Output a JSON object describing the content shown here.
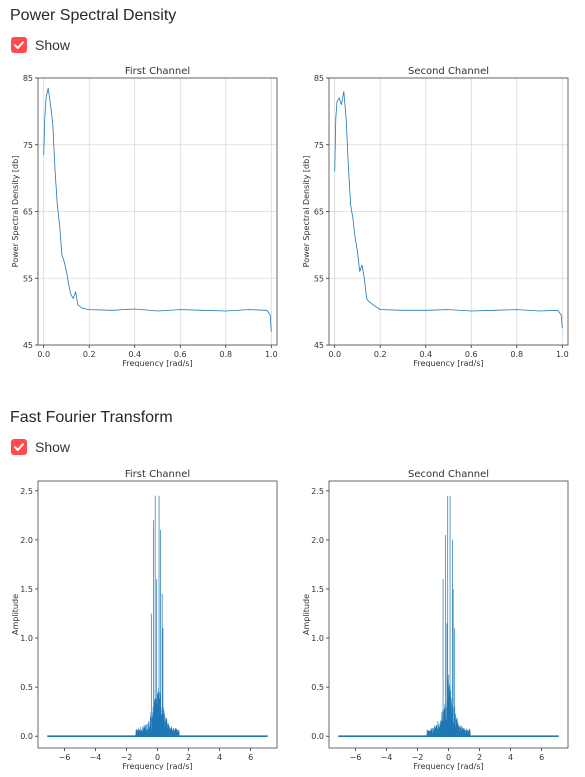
{
  "sections": [
    {
      "title": "Power Spectral Density",
      "checkbox_label": "Show",
      "checked": true
    },
    {
      "title": "Fast Fourier Transform",
      "checkbox_label": "Show",
      "checked": true
    }
  ],
  "colors": {
    "accent": "#ff4b4b",
    "line": "#1f77b4",
    "grid": "#d9d9d9"
  },
  "chart_data": [
    {
      "type": "line",
      "title": "First Channel",
      "xlabel": "Frequency [rad/s]",
      "ylabel": "Power Spectral Density [db]",
      "xlim": [
        -0.025,
        1.025
      ],
      "ylim": [
        45,
        85
      ],
      "xticks": [
        "0.0",
        "0.2",
        "0.4",
        "0.6",
        "0.8",
        "1.0"
      ],
      "yticks": [
        "45",
        "55",
        "65",
        "75",
        "85"
      ],
      "grid": true,
      "x": [
        0,
        0.005,
        0.01,
        0.02,
        0.03,
        0.04,
        0.05,
        0.06,
        0.07,
        0.08,
        0.09,
        0.1,
        0.11,
        0.12,
        0.13,
        0.14,
        0.15,
        0.17,
        0.2,
        0.3,
        0.4,
        0.5,
        0.6,
        0.7,
        0.8,
        0.9,
        0.98,
        0.995,
        1.0
      ],
      "y": [
        73.5,
        79,
        82,
        83.5,
        81,
        78,
        71,
        66,
        63,
        58.5,
        57.5,
        56,
        54,
        52.5,
        52,
        53,
        51,
        50.5,
        50.3,
        50.2,
        50.4,
        50.1,
        50.3,
        50.2,
        50.1,
        50.3,
        50.2,
        49.5,
        47
      ]
    },
    {
      "type": "line",
      "title": "Second Channel",
      "xlabel": "Frequency [rad/s]",
      "ylabel": "Power Spectral Density [db]",
      "xlim": [
        -0.025,
        1.025
      ],
      "ylim": [
        45,
        85
      ],
      "xticks": [
        "0.0",
        "0.2",
        "0.4",
        "0.6",
        "0.8",
        "1.0"
      ],
      "yticks": [
        "45",
        "55",
        "65",
        "75",
        "85"
      ],
      "grid": true,
      "x": [
        0,
        0.005,
        0.01,
        0.02,
        0.03,
        0.04,
        0.05,
        0.06,
        0.07,
        0.08,
        0.09,
        0.1,
        0.11,
        0.12,
        0.13,
        0.14,
        0.15,
        0.17,
        0.2,
        0.3,
        0.4,
        0.5,
        0.6,
        0.7,
        0.8,
        0.9,
        0.98,
        0.995,
        1.0
      ],
      "y": [
        71,
        79,
        81.5,
        82,
        81,
        83,
        79,
        72,
        66,
        64,
        61,
        59,
        56,
        57,
        55,
        52,
        51.5,
        51,
        50.3,
        50.2,
        50.2,
        50.3,
        50.1,
        50.2,
        50.3,
        50.1,
        50.2,
        49.5,
        47.5
      ]
    },
    {
      "type": "line",
      "title": "First Channel",
      "xlabel": "Frequency [rad/s]",
      "ylabel": "Amplitude",
      "xlim": [
        -7.7,
        7.7
      ],
      "ylim": [
        -0.12,
        2.6
      ],
      "xticks": [
        "−6",
        "−4",
        "−2",
        "0",
        "2",
        "4",
        "6"
      ],
      "yticks": [
        "0.0",
        "0.5",
        "1.0",
        "1.5",
        "2.0",
        "2.5"
      ],
      "grid": false,
      "range": [
        -7.1,
        7.1
      ],
      "peaks": [
        {
          "x": -0.15,
          "y": 2.45
        },
        {
          "x": 0.1,
          "y": 2.45
        },
        {
          "x": -0.25,
          "y": 2.2
        },
        {
          "x": 0.2,
          "y": 2.1
        },
        {
          "x": -0.4,
          "y": 1.25
        },
        {
          "x": 0.35,
          "y": 1.1
        },
        {
          "x": -0.05,
          "y": 1.6
        },
        {
          "x": 0.3,
          "y": 1.45
        }
      ]
    },
    {
      "type": "line",
      "title": "Second Channel",
      "xlabel": "Frequency [rad/s]",
      "ylabel": "Amplitude",
      "xlim": [
        -7.7,
        7.7
      ],
      "ylim": [
        -0.12,
        2.6
      ],
      "xticks": [
        "−6",
        "−4",
        "−2",
        "0",
        "2",
        "4",
        "6"
      ],
      "yticks": [
        "0.0",
        "0.5",
        "1.0",
        "1.5",
        "2.0",
        "2.5"
      ],
      "grid": false,
      "range": [
        -7.1,
        7.1
      ],
      "peaks": [
        {
          "x": -0.05,
          "y": 2.45
        },
        {
          "x": 0.1,
          "y": 2.45
        },
        {
          "x": -0.2,
          "y": 2.05
        },
        {
          "x": 0.25,
          "y": 2.0
        },
        {
          "x": -0.35,
          "y": 1.6
        },
        {
          "x": 0.3,
          "y": 1.5
        },
        {
          "x": -0.1,
          "y": 1.15
        },
        {
          "x": 0.4,
          "y": 1.1
        }
      ]
    }
  ]
}
